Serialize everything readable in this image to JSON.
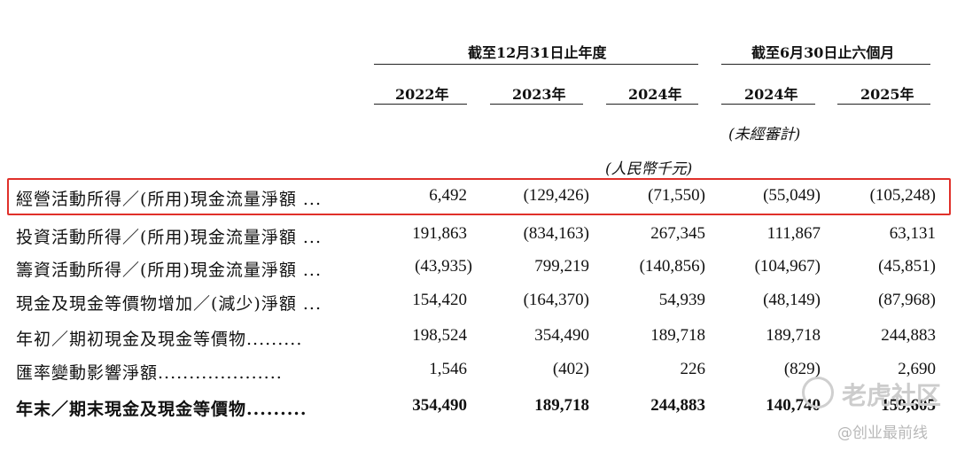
{
  "header": {
    "group_fy": "截至12月31日止年度",
    "group_6m": "截至6月30日止六個月",
    "years": [
      "2022年",
      "2023年",
      "2024年",
      "2024年",
      "2025年"
    ],
    "unaudited": "(未經審計)",
    "unit": "(人民幣千元)"
  },
  "rows": [
    {
      "label": "經營活動所得／(所用)現金流量淨額 ...",
      "values": [
        "6,492",
        "(129,426)",
        "(71,550)",
        "(55,049)",
        "(105,248)"
      ]
    },
    {
      "label": "投資活動所得／(所用)現金流量淨額 ...",
      "values": [
        "191,863",
        "(834,163)",
        "267,345",
        "111,867",
        "63,131"
      ]
    },
    {
      "label": "籌資活動所得／(所用)現金流量淨額 ...",
      "values": [
        "(43,935)",
        "799,219",
        "(140,856)",
        "(104,967)",
        "(45,851)"
      ]
    },
    {
      "label": "現金及現金等價物增加／(減少)淨額 ...",
      "values": [
        "154,420",
        "(164,370)",
        "54,939",
        "(48,149)",
        "(87,968)"
      ]
    },
    {
      "label": "年初／期初現金及現金等價物.........",
      "values": [
        "198,524",
        "354,490",
        "189,718",
        "189,718",
        "244,883"
      ]
    },
    {
      "label": "匯率變動影響淨額....................",
      "values": [
        "1,546",
        "(402)",
        "226",
        "(829)",
        "2,690"
      ]
    },
    {
      "label": "年末／期末現金及現金等價物.........",
      "values": [
        "354,490",
        "189,718",
        "244,883",
        "140,740",
        "159,605"
      ]
    }
  ],
  "watermark": {
    "brand": "老虎社区",
    "handle": "@创业最前线"
  }
}
